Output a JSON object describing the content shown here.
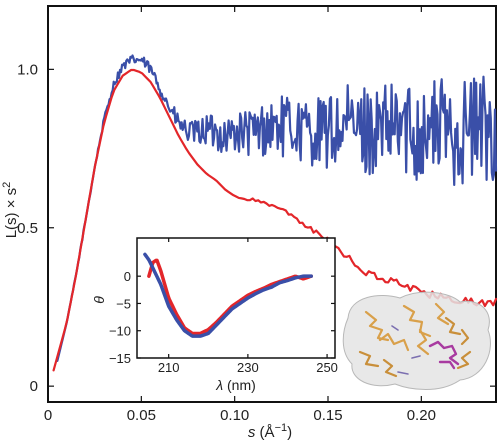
{
  "colors": {
    "blue": "#3a4fa8",
    "red": "#e3262a",
    "frame": "#111111"
  },
  "chart_data": [
    {
      "type": "line",
      "title": "",
      "xlabel_var": "s",
      "xlabel_unit": " (Å",
      "xlabel_exp": "−1",
      "xlabel_close": ")",
      "ylabel_base": "L(s) × s",
      "ylabel_exp": "2",
      "xlim": [
        0,
        0.24
      ],
      "ylim": [
        -0.05,
        1.2
      ],
      "xticks": [
        0,
        0.05,
        0.1,
        0.15,
        0.2
      ],
      "xtick_labels": [
        "0",
        "0.05",
        "0.10",
        "0.15",
        "0.20"
      ],
      "yticks": [
        0,
        0.5,
        1.0
      ],
      "ytick_labels": [
        "0",
        "0.5",
        "1.0"
      ],
      "grid": false,
      "series": [
        {
          "color": "#3a4fa8",
          "noisy": true,
          "x": [
            0.005,
            0.01,
            0.015,
            0.02,
            0.025,
            0.03,
            0.035,
            0.04,
            0.045,
            0.05,
            0.055,
            0.06,
            0.065,
            0.07,
            0.075,
            0.08,
            0.085,
            0.09,
            0.095,
            0.1,
            0.11,
            0.12,
            0.13,
            0.14,
            0.15,
            0.16,
            0.17,
            0.18,
            0.19,
            0.2,
            0.21,
            0.22,
            0.23,
            0.24
          ],
          "y": [
            0.08,
            0.2,
            0.35,
            0.52,
            0.69,
            0.84,
            0.95,
            1.01,
            1.03,
            1.03,
            1.0,
            0.94,
            0.88,
            0.83,
            0.8,
            0.8,
            0.81,
            0.8,
            0.79,
            0.8,
            0.8,
            0.82,
            0.82,
            0.8,
            0.8,
            0.82,
            0.81,
            0.8,
            0.82,
            0.8,
            0.82,
            0.8,
            0.82,
            0.81
          ],
          "noise": [
            0.0,
            0.0,
            0.005,
            0.005,
            0.008,
            0.01,
            0.012,
            0.014,
            0.015,
            0.016,
            0.018,
            0.02,
            0.025,
            0.03,
            0.035,
            0.04,
            0.05,
            0.055,
            0.06,
            0.065,
            0.08,
            0.09,
            0.1,
            0.11,
            0.12,
            0.13,
            0.14,
            0.15,
            0.16,
            0.16,
            0.17,
            0.17,
            0.18,
            0.18
          ]
        },
        {
          "color": "#e3262a",
          "noisy": false,
          "x": [
            0.003,
            0.01,
            0.015,
            0.02,
            0.025,
            0.03,
            0.035,
            0.04,
            0.045,
            0.05,
            0.055,
            0.06,
            0.065,
            0.07,
            0.075,
            0.08,
            0.085,
            0.09,
            0.095,
            0.1,
            0.105,
            0.11,
            0.115,
            0.12,
            0.125,
            0.13,
            0.135,
            0.14,
            0.145,
            0.15,
            0.16,
            0.17,
            0.18,
            0.19,
            0.2,
            0.21,
            0.22,
            0.23,
            0.24
          ],
          "y": [
            0.05,
            0.2,
            0.35,
            0.52,
            0.69,
            0.83,
            0.93,
            0.98,
            1.0,
            0.99,
            0.96,
            0.91,
            0.85,
            0.79,
            0.74,
            0.7,
            0.67,
            0.65,
            0.62,
            0.6,
            0.59,
            0.59,
            0.58,
            0.57,
            0.56,
            0.54,
            0.52,
            0.5,
            0.48,
            0.46,
            0.41,
            0.36,
            0.34,
            0.32,
            0.3,
            0.28,
            0.27,
            0.26,
            0.26
          ],
          "noise": [
            0,
            0,
            0,
            0,
            0,
            0,
            0,
            0,
            0,
            0,
            0,
            0,
            0,
            0,
            0,
            0,
            0,
            0,
            0,
            0,
            0.004,
            0.004,
            0.005,
            0.005,
            0.005,
            0.006,
            0.006,
            0.007,
            0.007,
            0.008,
            0.009,
            0.01,
            0.011,
            0.012,
            0.012,
            0.013,
            0.014,
            0.015,
            0.016
          ]
        }
      ]
    },
    {
      "type": "line",
      "title": "",
      "xlabel_var": "λ",
      "xlabel_unit": " (nm)",
      "ylabel": "θ",
      "xlim": [
        202,
        252
      ],
      "ylim": [
        -15,
        7
      ],
      "xticks": [
        210,
        230,
        250
      ],
      "xtick_labels": [
        "210",
        "230",
        "250"
      ],
      "yticks": [
        0,
        -5,
        -10,
        -15
      ],
      "ytick_labels": [
        "0",
        "−5",
        "−10",
        "−15"
      ],
      "grid": false,
      "series": [
        {
          "color": "#e3262a",
          "noisy": false,
          "x": [
            205,
            206,
            207,
            208,
            209,
            210,
            212,
            214,
            216,
            218,
            220,
            222,
            224,
            226,
            228,
            230,
            232,
            234,
            236,
            238,
            240,
            242,
            244,
            246
          ],
          "y": [
            0,
            2.5,
            3,
            1,
            -1.5,
            -4,
            -7,
            -9.5,
            -10.5,
            -10.5,
            -9.8,
            -8.5,
            -7,
            -5.5,
            -4.5,
            -3.5,
            -2.8,
            -2.2,
            -1.5,
            -1,
            -0.5,
            0,
            -0.5,
            0
          ]
        },
        {
          "color": "#3a4fa8",
          "noisy": false,
          "x": [
            204,
            205,
            206,
            207,
            208,
            209,
            210,
            212,
            214,
            216,
            218,
            220,
            222,
            224,
            226,
            228,
            230,
            232,
            234,
            236,
            238,
            240,
            242,
            244,
            246
          ],
          "y": [
            4,
            3,
            1.5,
            0,
            -1.5,
            -3.5,
            -5.5,
            -8,
            -10,
            -11,
            -11,
            -10.5,
            -9,
            -7.5,
            -6,
            -5,
            -4,
            -3.2,
            -2.5,
            -2,
            -1.2,
            -0.8,
            -0.3,
            0,
            0
          ]
        }
      ]
    }
  ]
}
